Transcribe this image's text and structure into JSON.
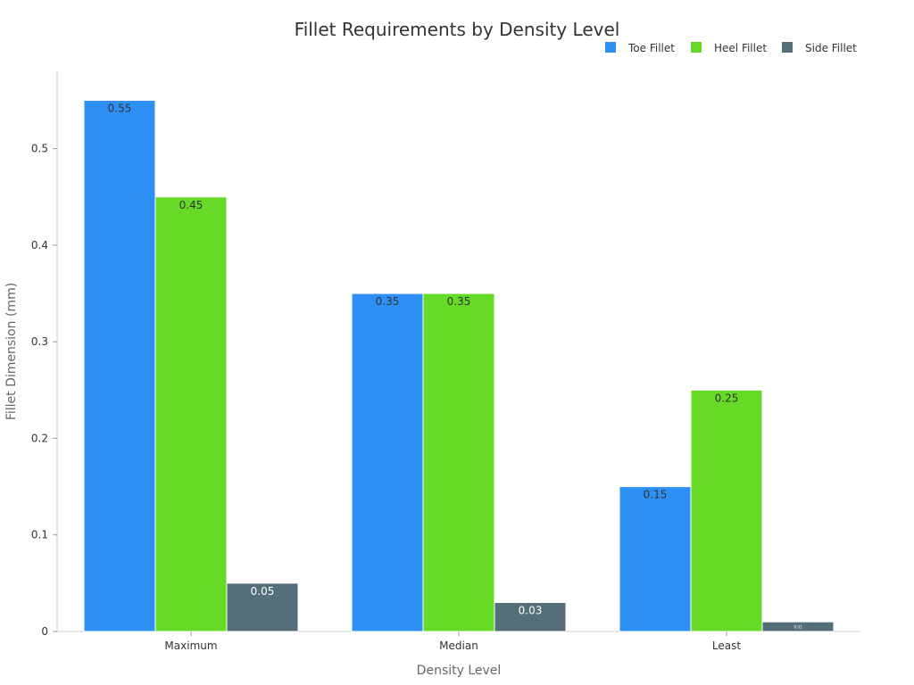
{
  "chart_data": {
    "type": "bar",
    "title": "Fillet Requirements by Density Level",
    "xlabel": "Density Level",
    "ylabel": "Fillet Dimension (mm)",
    "categories": [
      "Maximum",
      "Median",
      "Least"
    ],
    "series": [
      {
        "name": "Toe Fillet",
        "color": "#2E90F5",
        "values": [
          0.55,
          0.35,
          0.15
        ],
        "labels": [
          "0.55",
          "0.35",
          "0.15"
        ]
      },
      {
        "name": "Heel Fillet",
        "color": "#66DA26",
        "values": [
          0.45,
          0.35,
          0.25
        ],
        "labels": [
          "0.45",
          "0.35",
          "0.25"
        ]
      },
      {
        "name": "Side Fillet",
        "color": "#546E7A",
        "values": [
          0.05,
          0.03,
          0.01
        ],
        "labels": [
          "0.05",
          "0.03",
          "0.01"
        ]
      }
    ],
    "ylim": [
      0,
      0.58
    ],
    "yticks": [
      0,
      0.1,
      0.2,
      0.3,
      0.4,
      0.5
    ],
    "ytick_labels": [
      "0",
      "0.1",
      "0.2",
      "0.3",
      "0.4",
      "0.5"
    ],
    "grid": false,
    "legend_position": "top-right"
  }
}
